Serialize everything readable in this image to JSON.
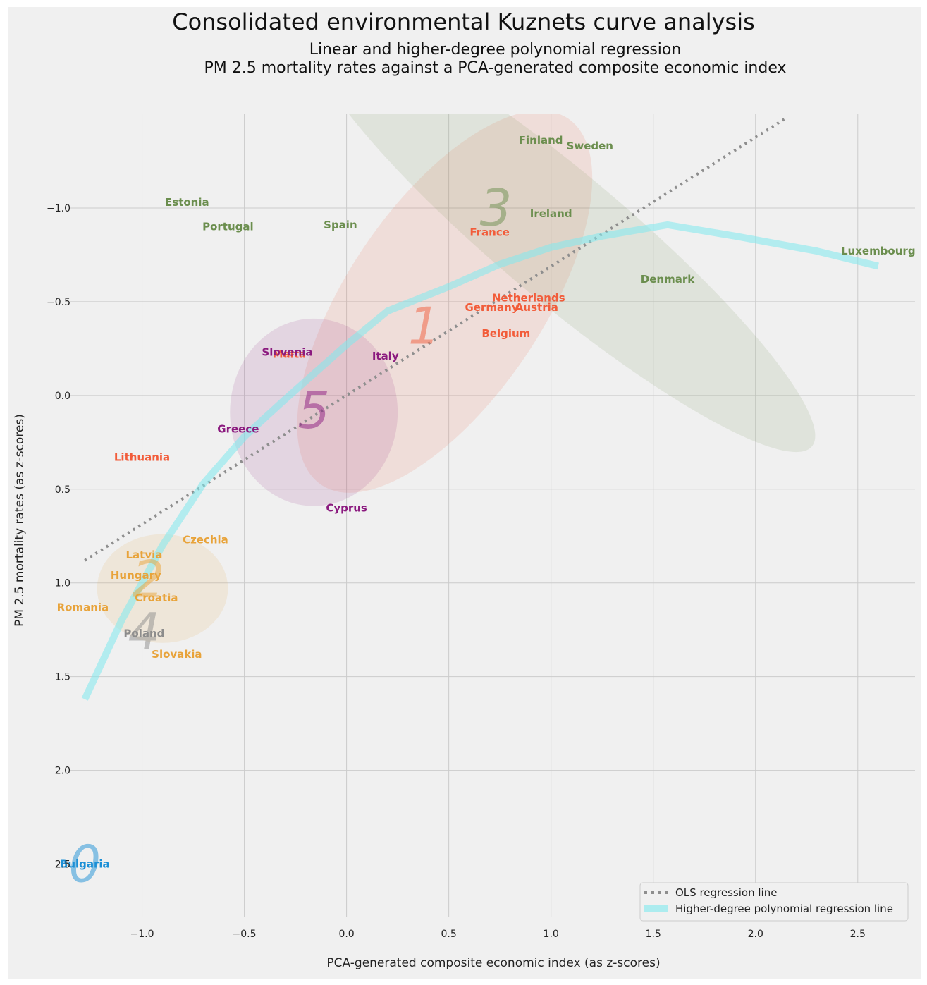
{
  "colors": {
    "cluster0": "#1b8fd6",
    "cluster1": "#f25c3a",
    "cluster2": "#e8a33a",
    "cluster3": "#6b8e4e",
    "cluster4": "#8c8c8c",
    "cluster5": "#8b1a7f",
    "ols": "#8e8e8e",
    "poly": "#7fe9ee"
  },
  "chart_data": {
    "type": "scatter",
    "title": "Consolidated environmental Kuznets curve analysis",
    "subtitle_line1": "Linear and higher-degree polynomial regression",
    "subtitle_line2": "PM 2.5 mortality rates against a PCA-generated composite economic index",
    "xlabel": "PCA-generated composite economic index (as z-scores)",
    "ylabel": "PM 2.5 mortality rates (as z-scores)",
    "xlim": [
      -1.35,
      2.78
    ],
    "ylim": [
      -1.5,
      2.78
    ],
    "y_inverted": true,
    "grid": true,
    "xticks": [
      -1.0,
      -0.5,
      0.0,
      0.5,
      1.0,
      1.5,
      2.0,
      2.5
    ],
    "xtick_labels": [
      "−1.0",
      "−0.5",
      "0.0",
      "0.5",
      "1.0",
      "1.5",
      "2.0",
      "2.5"
    ],
    "yticks": [
      -1.0,
      -0.5,
      0.0,
      0.5,
      1.0,
      1.5,
      2.0,
      2.5
    ],
    "ytick_labels": [
      "−1.0",
      "−0.5",
      "0.0",
      "0.5",
      "1.0",
      "1.5",
      "2.0",
      "2.5"
    ],
    "countries": [
      {
        "name": "Finland",
        "x": 0.95,
        "y": -1.36,
        "cluster": 3
      },
      {
        "name": "Sweden",
        "x": 1.19,
        "y": -1.33,
        "cluster": 3
      },
      {
        "name": "Estonia",
        "x": -0.78,
        "y": -1.03,
        "cluster": 3
      },
      {
        "name": "Portugal",
        "x": -0.58,
        "y": -0.9,
        "cluster": 3
      },
      {
        "name": "Spain",
        "x": -0.03,
        "y": -0.91,
        "cluster": 3
      },
      {
        "name": "Ireland",
        "x": 1.0,
        "y": -0.97,
        "cluster": 3
      },
      {
        "name": "France",
        "x": 0.7,
        "y": -0.87,
        "cluster": 1
      },
      {
        "name": "Luxembourg",
        "x": 2.6,
        "y": -0.77,
        "cluster": 3
      },
      {
        "name": "Denmark",
        "x": 1.57,
        "y": -0.62,
        "cluster": 3
      },
      {
        "name": "Netherlands",
        "x": 0.89,
        "y": -0.52,
        "cluster": 1
      },
      {
        "name": "Germany",
        "x": 0.71,
        "y": -0.47,
        "cluster": 1
      },
      {
        "name": "Austria",
        "x": 0.93,
        "y": -0.47,
        "cluster": 1
      },
      {
        "name": "Belgium",
        "x": 0.78,
        "y": -0.33,
        "cluster": 1
      },
      {
        "name": "Malta",
        "x": -0.28,
        "y": -0.22,
        "cluster": 1
      },
      {
        "name": "Slovenia",
        "x": -0.29,
        "y": -0.23,
        "cluster": 5
      },
      {
        "name": "Italy",
        "x": 0.19,
        "y": -0.21,
        "cluster": 5
      },
      {
        "name": "Greece",
        "x": -0.53,
        "y": 0.18,
        "cluster": 5
      },
      {
        "name": "Lithuania",
        "x": -1.0,
        "y": 0.33,
        "cluster": 1
      },
      {
        "name": "Cyprus",
        "x": 0.0,
        "y": 0.6,
        "cluster": 5
      },
      {
        "name": "Czechia",
        "x": -0.69,
        "y": 0.77,
        "cluster": 2
      },
      {
        "name": "Latvia",
        "x": -0.99,
        "y": 0.85,
        "cluster": 2
      },
      {
        "name": "Hungary",
        "x": -1.03,
        "y": 0.96,
        "cluster": 2
      },
      {
        "name": "Croatia",
        "x": -0.93,
        "y": 1.08,
        "cluster": 2
      },
      {
        "name": "Romania",
        "x": -1.29,
        "y": 1.13,
        "cluster": 2
      },
      {
        "name": "Poland",
        "x": -0.99,
        "y": 1.27,
        "cluster": 4
      },
      {
        "name": "Slovakia",
        "x": -0.83,
        "y": 1.38,
        "cluster": 2
      },
      {
        "name": "Bulgaria",
        "x": -1.28,
        "y": 2.5,
        "cluster": 0
      }
    ],
    "cluster_labels": [
      {
        "label": "0",
        "x": -1.28,
        "y": 2.5,
        "cluster": 0
      },
      {
        "label": "1",
        "x": 0.38,
        "y": -0.37,
        "cluster": 1
      },
      {
        "label": "2",
        "x": -0.97,
        "y": 0.98,
        "cluster": 2
      },
      {
        "label": "3",
        "x": 0.73,
        "y": -1.0,
        "cluster": 3
      },
      {
        "label": "4",
        "x": -0.99,
        "y": 1.26,
        "cluster": 4
      },
      {
        "label": "5",
        "x": -0.16,
        "y": 0.08,
        "cluster": 5
      }
    ],
    "cluster_ellipses": [
      {
        "cluster": 1,
        "cx": 0.48,
        "cy": -0.5,
        "rx": 1.08,
        "ry": 0.52,
        "angle": -56
      },
      {
        "cluster": 2,
        "cx": -0.9,
        "cy": 1.03,
        "rx": 0.32,
        "ry": 0.29,
        "angle": 0
      },
      {
        "cluster": 3,
        "cx": 1.05,
        "cy": -0.85,
        "rx": 1.6,
        "ry": 0.34,
        "angle": 40
      },
      {
        "cluster": 5,
        "cx": -0.16,
        "cy": 0.09,
        "rx": 0.41,
        "ry": 0.5,
        "angle": 0
      }
    ],
    "series": [
      {
        "name": "OLS regression line",
        "style": "dotted",
        "x": [
          -1.28,
          2.15
        ],
        "y": [
          0.88,
          -1.48
        ]
      },
      {
        "name": "Higher-degree polynomial regression line",
        "style": "thick",
        "x": [
          -1.28,
          -1.1,
          -0.9,
          -0.7,
          -0.5,
          -0.3,
          0.0,
          0.2,
          0.5,
          0.75,
          1.0,
          1.25,
          1.57,
          1.9,
          2.3,
          2.6
        ],
        "y": [
          1.62,
          1.2,
          0.8,
          0.47,
          0.22,
          0.02,
          -0.27,
          -0.45,
          -0.58,
          -0.7,
          -0.79,
          -0.85,
          -0.91,
          -0.85,
          -0.77,
          -0.69
        ]
      }
    ],
    "legend": {
      "position": "lower-right",
      "entries": [
        "OLS regression line",
        "Higher-degree polynomial regression line"
      ]
    }
  }
}
